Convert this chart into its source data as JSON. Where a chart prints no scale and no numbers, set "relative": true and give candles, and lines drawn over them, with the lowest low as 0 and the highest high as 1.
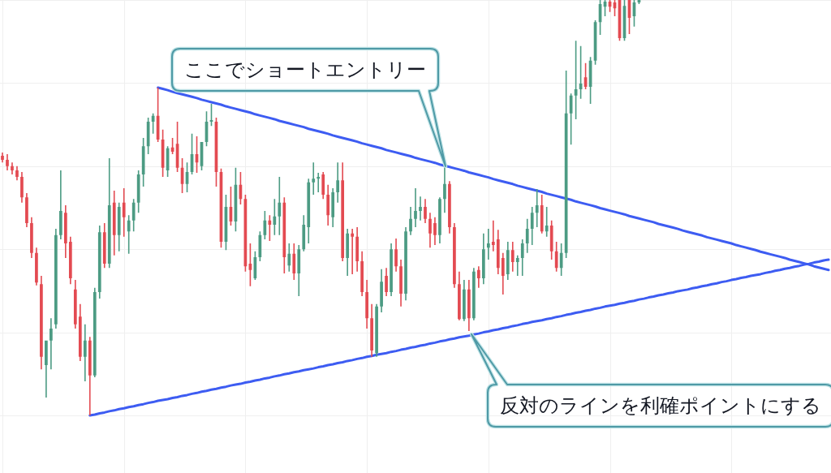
{
  "chart_data": {
    "type": "candlestick",
    "relative": true,
    "grid": true,
    "categories": [
      null,
      null,
      null,
      null,
      null,
      null,
      null,
      null,
      null,
      null,
      null,
      null,
      null,
      null,
      null,
      null,
      null,
      null,
      null,
      null,
      null,
      null,
      null,
      null,
      null,
      null,
      null,
      null,
      null,
      null,
      null,
      null,
      null,
      null,
      null,
      null,
      null,
      null,
      null,
      null,
      null,
      null,
      null,
      null,
      null,
      null,
      null,
      null,
      null,
      null,
      null,
      null,
      null,
      null,
      null,
      null,
      null,
      null,
      null,
      null,
      null,
      null,
      null,
      null,
      null,
      null,
      null,
      null,
      null,
      null,
      null,
      null,
      null,
      null,
      null,
      null,
      null,
      null,
      null,
      null,
      null,
      null,
      null,
      null,
      null,
      null,
      null,
      null,
      null,
      null,
      null,
      null,
      null,
      null,
      null,
      null,
      null,
      null,
      null,
      null,
      null,
      null,
      null,
      null,
      null,
      null,
      null,
      null,
      null,
      null,
      null,
      null,
      null,
      null,
      null,
      null,
      null,
      null,
      null,
      null,
      null,
      null,
      null,
      null,
      null,
      null,
      null,
      null,
      null,
      null,
      null,
      null,
      null,
      null,
      null,
      null,
      null,
      null,
      null,
      null,
      null,
      null,
      null,
      null,
      null,
      null,
      null,
      null,
      null,
      null,
      null,
      null,
      null,
      null,
      null,
      null,
      null,
      null,
      null,
      null,
      null,
      null,
      null,
      null,
      null,
      null,
      null,
      null,
      null,
      null,
      null
    ],
    "ohlc": [
      [
        0.625,
        0.633,
        0.609,
        0.615
      ],
      [
        0.615,
        0.629,
        0.59,
        0.6
      ],
      [
        0.6,
        0.609,
        0.58,
        0.59
      ],
      [
        0.59,
        0.6,
        0.566,
        0.574
      ],
      [
        0.574,
        0.586,
        0.512,
        0.525
      ],
      [
        0.525,
        0.535,
        0.453,
        0.463
      ],
      [
        0.463,
        0.477,
        0.379,
        0.391
      ],
      [
        0.391,
        0.404,
        0.313,
        0.32
      ],
      [
        0.316,
        0.336,
        0.111,
        0.141
      ],
      [
        0.121,
        0.18,
        0.043,
        0.18
      ],
      [
        0.18,
        0.234,
        0.111,
        0.209
      ],
      [
        0.219,
        0.449,
        0.209,
        0.434
      ],
      [
        0.434,
        0.59,
        0.424,
        0.492
      ],
      [
        0.488,
        0.506,
        0.379,
        0.414
      ],
      [
        0.418,
        0.43,
        0.316,
        0.33
      ],
      [
        0.303,
        0.326,
        0.209,
        0.219
      ],
      [
        0.238,
        0.268,
        0.131,
        0.141
      ],
      [
        0.141,
        0.219,
        0.082,
        0.18
      ],
      [
        0.18,
        0.189,
        0,
        0.096
      ],
      [
        0.096,
        0.307,
        0.092,
        0.297
      ],
      [
        0.297,
        0.457,
        0.281,
        0.441
      ],
      [
        0.441,
        0.463,
        0.355,
        0.365
      ],
      [
        0.365,
        0.619,
        0.355,
        0.506
      ],
      [
        0.512,
        0.541,
        0.385,
        0.434
      ],
      [
        0.434,
        0.512,
        0.395,
        0.502
      ],
      [
        0.512,
        0.547,
        0.43,
        0.477
      ],
      [
        0.443,
        0.482,
        0.389,
        0.469
      ],
      [
        0.469,
        0.521,
        0.443,
        0.512
      ],
      [
        0.512,
        0.59,
        0.488,
        0.58
      ],
      [
        0.58,
        0.668,
        0.551,
        0.648
      ],
      [
        0.648,
        0.717,
        0.629,
        0.707
      ],
      [
        0.707,
        0.727,
        0.678,
        0.721
      ],
      [
        0.721,
        0.789,
        0.658,
        0.664
      ],
      [
        0.664,
        0.688,
        0.574,
        0.596
      ],
      [
        0.59,
        0.648,
        0.574,
        0.643
      ],
      [
        0.645,
        0.668,
        0.629,
        0.635
      ],
      [
        0.654,
        0.707,
        0.586,
        0.596
      ],
      [
        0.596,
        0.619,
        0.535,
        0.557
      ],
      [
        0.557,
        0.609,
        0.537,
        0.586
      ],
      [
        0.586,
        0.678,
        0.58,
        0.629
      ],
      [
        0.629,
        0.672,
        0.584,
        0.609
      ],
      [
        0.6,
        0.658,
        0.59,
        0.658
      ],
      [
        0.658,
        0.732,
        0.648,
        0.707
      ],
      [
        0.707,
        0.75,
        0.697,
        0.711
      ],
      [
        0.707,
        0.717,
        0.551,
        0.586
      ],
      [
        0.586,
        0.594,
        0.404,
        0.418
      ],
      [
        0.418,
        0.531,
        0.398,
        0.502
      ],
      [
        0.502,
        0.551,
        0.457,
        0.467
      ],
      [
        0.467,
        0.596,
        0.443,
        0.555
      ],
      [
        0.555,
        0.586,
        0.508,
        0.521
      ],
      [
        0.521,
        0.531,
        0.346,
        0.359
      ],
      [
        0.365,
        0.414,
        0.311,
        0.35
      ],
      [
        0.33,
        0.395,
        0.326,
        0.381
      ],
      [
        0.381,
        0.443,
        0.371,
        0.434
      ],
      [
        0.434,
        0.492,
        0.424,
        0.469
      ],
      [
        0.469,
        0.482,
        0.42,
        0.459
      ],
      [
        0.459,
        0.521,
        0.434,
        0.479
      ],
      [
        0.479,
        0.574,
        0.434,
        0.512
      ],
      [
        0.512,
        0.525,
        0.342,
        0.381
      ],
      [
        0.361,
        0.414,
        0.346,
        0.389
      ],
      [
        0.389,
        0.414,
        0.326,
        0.342
      ],
      [
        0.342,
        0.41,
        0.287,
        0.4
      ],
      [
        0.4,
        0.482,
        0.395,
        0.459
      ],
      [
        0.453,
        0.57,
        0.414,
        0.561
      ],
      [
        0.561,
        0.609,
        0.531,
        0.57
      ],
      [
        0.57,
        0.584,
        0.537,
        0.574
      ],
      [
        0.58,
        0.586,
        0.521,
        0.531
      ],
      [
        0.531,
        0.555,
        0.457,
        0.482
      ],
      [
        0.477,
        0.547,
        0.453,
        0.537
      ],
      [
        0.537,
        0.609,
        0.512,
        0.566
      ],
      [
        0.566,
        0.609,
        0.371,
        0.379
      ],
      [
        0.379,
        0.449,
        0.336,
        0.438
      ],
      [
        0.438,
        0.449,
        0.34,
        0.43
      ],
      [
        0.43,
        0.453,
        0.346,
        0.371
      ],
      [
        0.371,
        0.395,
        0.287,
        0.297
      ],
      [
        0.297,
        0.326,
        0.209,
        0.234
      ],
      [
        0.234,
        0.268,
        0.141,
        0.156
      ],
      [
        0.15,
        0.268,
        0.141,
        0.262
      ],
      [
        0.262,
        0.352,
        0.248,
        0.322
      ],
      [
        0.336,
        0.355,
        0.287,
        0.297
      ],
      [
        0.297,
        0.414,
        0.287,
        0.4
      ],
      [
        0.4,
        0.426,
        0.346,
        0.359
      ],
      [
        0.359,
        0.375,
        0.262,
        0.293
      ],
      [
        0.293,
        0.453,
        0.277,
        0.443
      ],
      [
        0.443,
        0.502,
        0.434,
        0.473
      ],
      [
        0.473,
        0.547,
        0.453,
        0.492
      ],
      [
        0.492,
        0.527,
        0.469,
        0.502
      ],
      [
        0.502,
        0.521,
        0.463,
        0.473
      ],
      [
        0.473,
        0.488,
        0.404,
        0.438
      ],
      [
        0.463,
        0.477,
        0.41,
        0.434
      ],
      [
        0.434,
        0.525,
        0.414,
        0.521
      ],
      [
        0.521,
        0.6,
        0.488,
        0.557
      ],
      [
        0.557,
        0.564,
        0.438,
        0.453
      ],
      [
        0.453,
        0.463,
        0.307,
        0.316
      ],
      [
        0.316,
        0.346,
        0.229,
        0.232
      ],
      [
        0.232,
        0.326,
        0.227,
        0.303
      ],
      [
        0.303,
        0.326,
        0.203,
        0.234
      ],
      [
        0.234,
        0.355,
        0.229,
        0.346
      ],
      [
        0.35,
        0.359,
        0.307,
        0.33
      ],
      [
        0.33,
        0.438,
        0.316,
        0.4
      ],
      [
        0.404,
        0.449,
        0.375,
        0.414
      ],
      [
        0.418,
        0.469,
        0.395,
        0.41
      ],
      [
        0.424,
        0.447,
        0.34,
        0.355
      ],
      [
        0.379,
        0.391,
        0.291,
        0.336
      ],
      [
        0.34,
        0.418,
        0.326,
        0.398
      ],
      [
        0.398,
        0.418,
        0.346,
        0.369
      ],
      [
        0.369,
        0.385,
        0.336,
        0.379
      ],
      [
        0.379,
        0.424,
        0.336,
        0.414
      ],
      [
        0.414,
        0.473,
        0.391,
        0.449
      ],
      [
        0.449,
        0.502,
        0.41,
        0.488
      ],
      [
        0.488,
        0.545,
        0.453,
        0.506
      ],
      [
        0.506,
        0.531,
        0.438,
        0.443
      ],
      [
        0.443,
        0.502,
        0.43,
        0.457
      ],
      [
        0.457,
        0.469,
        0.375,
        0.395
      ],
      [
        0.395,
        0.418,
        0.346,
        0.355
      ],
      [
        0.355,
        0.414,
        0.336,
        0.391
      ],
      [
        0.391,
        0.83,
        0.379,
        0.727
      ],
      [
        0.727,
        0.775,
        0.652,
        0.77
      ],
      [
        0.77,
        0.902,
        0.713,
        0.785
      ],
      [
        0.785,
        0.889,
        0.762,
        0.799
      ],
      [
        0.814,
        0.848,
        0.785,
        0.791
      ],
      [
        0.791,
        0.863,
        0.75,
        0.854
      ],
      [
        0.854,
        0.951,
        0.844,
        0.947
      ],
      [
        0.947,
        1,
        0.916,
        0.99
      ],
      [
        0.984,
        1,
        0.961,
        0.996
      ],
      [
        0.996,
        1,
        0.971,
        0.984
      ],
      [
        0.994,
        1,
        0.961,
        0.98
      ],
      [
        1,
        1,
        0.902,
        0.908
      ],
      [
        0.908,
        1,
        0.902,
        0.986
      ],
      [
        1,
        1,
        0.918,
        0.957
      ],
      [
        0.961,
        1,
        0.936,
        0.994
      ],
      [
        0.994,
        1,
        0.99,
        1
      ],
      null,
      null,
      null,
      null,
      null,
      null,
      null,
      null,
      null,
      null,
      null,
      null,
      null,
      null,
      null,
      null,
      null,
      null,
      null,
      null,
      null,
      null,
      null,
      null,
      null,
      null,
      null,
      null,
      null,
      null,
      null,
      null,
      null,
      null,
      null,
      null,
      null,
      null,
      null
    ],
    "colors": [
      "#e34a51",
      "#e34a51",
      "#e34a51",
      "#e34a51",
      "#e34a51",
      "#e34a51",
      "#e34a51",
      "#e34a51",
      "#e34a51",
      "#4c9b83",
      "#4c9b83",
      "#4c9b83",
      "#4c9b83",
      "#e34a51",
      "#e34a51",
      "#e34a51",
      "#e34a51",
      "#4c9b83",
      "#e34a51",
      "#4c9b83",
      "#4c9b83",
      "#e34a51",
      "#4c9b83",
      "#e34a51",
      "#4c9b83",
      "#e34a51",
      "#4c9b83",
      "#4c9b83",
      "#4c9b83",
      "#4c9b83",
      "#4c9b83",
      "#4c9b83",
      "#e34a51",
      "#e34a51",
      "#4c9b83",
      "#e34a51",
      "#e34a51",
      "#e34a51",
      "#4c9b83",
      "#4c9b83",
      "#e34a51",
      "#4c9b83",
      "#4c9b83",
      "#4c9b83",
      "#e34a51",
      "#e34a51",
      "#4c9b83",
      "#e34a51",
      "#4c9b83",
      "#e34a51",
      "#e34a51",
      "#e34a51",
      "#4c9b83",
      "#4c9b83",
      "#4c9b83",
      "#e34a51",
      "#4c9b83",
      "#4c9b83",
      "#e34a51",
      "#4c9b83",
      "#e34a51",
      "#4c9b83",
      "#4c9b83",
      "#4c9b83",
      "#4c9b83",
      "#4c9b83",
      "#e34a51",
      "#e34a51",
      "#4c9b83",
      "#4c9b83",
      "#e34a51",
      "#4c9b83",
      "#e34a51",
      "#e34a51",
      "#e34a51",
      "#e34a51",
      "#e34a51",
      "#4c9b83",
      "#4c9b83",
      "#e34a51",
      "#4c9b83",
      "#e34a51",
      "#e34a51",
      "#4c9b83",
      "#4c9b83",
      "#4c9b83",
      "#4c9b83",
      "#e34a51",
      "#e34a51",
      "#e34a51",
      "#4c9b83",
      "#4c9b83",
      "#e34a51",
      "#e34a51",
      "#e34a51",
      "#4c9b83",
      "#e34a51",
      "#4c9b83",
      "#e34a51",
      "#4c9b83",
      "#4c9b83",
      "#e34a51",
      "#e34a51",
      "#e34a51",
      "#4c9b83",
      "#e34a51",
      "#4c9b83",
      "#4c9b83",
      "#4c9b83",
      "#4c9b83",
      "#4c9b83",
      "#e34a51",
      "#4c9b83",
      "#e34a51",
      "#e34a51",
      "#4c9b83",
      "#4c9b83",
      "#4c9b83",
      "#4c9b83",
      "#4c9b83",
      "#e34a51",
      "#4c9b83",
      "#4c9b83",
      "#4c9b83",
      "#4c9b83",
      "#e34a51",
      "#e34a51",
      "#e34a51",
      "#4c9b83",
      "#e34a51",
      "#4c9b83",
      "#4c9b83",
      null,
      null,
      null,
      null,
      null,
      null,
      null,
      null,
      null,
      null,
      null,
      null,
      null,
      null,
      null,
      null,
      null,
      null,
      null,
      null,
      null,
      null,
      null,
      null,
      null,
      null,
      null,
      null,
      null,
      null,
      null,
      null,
      null,
      null,
      null,
      null,
      null,
      null,
      null
    ],
    "series": [
      {
        "type": "line",
        "color": "#3d5cf2",
        "values": [
          null,
          null,
          null,
          null,
          null,
          null,
          null,
          null,
          null,
          null,
          null,
          null,
          null,
          null,
          null,
          null,
          null,
          null,
          null,
          null,
          null,
          null,
          null,
          null,
          null,
          null,
          null,
          null,
          null,
          null,
          null,
          null,
          0.789,
          0.786,
          0.783,
          0.779,
          0.776,
          0.773,
          0.77,
          0.767,
          0.764,
          0.76,
          0.757,
          0.754,
          0.751,
          0.748,
          0.744,
          0.741,
          0.738,
          0.735,
          0.732,
          0.729,
          0.725,
          0.722,
          0.719,
          0.716,
          0.713,
          0.709,
          0.706,
          0.703,
          0.7,
          0.697,
          0.694,
          0.69,
          0.687,
          0.684,
          0.681,
          0.678,
          0.674,
          0.671,
          0.668,
          0.665,
          0.662,
          0.659,
          0.655,
          0.652,
          0.649,
          0.646,
          0.643,
          0.639,
          0.636,
          0.633,
          0.63,
          0.627,
          0.624,
          0.62,
          0.617,
          0.614,
          0.611,
          0.608,
          0.604,
          0.601,
          0.598,
          0.595,
          0.592,
          0.589,
          0.585,
          0.582,
          0.579,
          0.576,
          0.573,
          0.569,
          0.566,
          0.563,
          0.56,
          0.557,
          0.553,
          0.55,
          0.547,
          0.544,
          0.541,
          0.538,
          0.534,
          0.531,
          0.528,
          0.525,
          0.522,
          0.519,
          0.515,
          0.512,
          0.509,
          0.506,
          0.503,
          0.499,
          0.496,
          0.493,
          0.49,
          0.487,
          0.484,
          0.48,
          0.477,
          0.474,
          0.471,
          0.468,
          0.465,
          0.461,
          0.458,
          0.455,
          0.452,
          0.449,
          0.445,
          0.442,
          0.439,
          0.436,
          0.433,
          0.429,
          0.426,
          0.423,
          0.42,
          0.417,
          0.414,
          0.41,
          0.407,
          0.404,
          0.401,
          0.398,
          0.394,
          0.391,
          0.388,
          0.385,
          0.382,
          0.379,
          0.375,
          0.372,
          0.369,
          0.366,
          0.363,
          0.359,
          0.356,
          0.353,
          0.35
        ]
      },
      {
        "type": "line",
        "color": "#3d5cf2",
        "values": [
          null,
          null,
          null,
          null,
          null,
          null,
          null,
          null,
          null,
          null,
          null,
          null,
          null,
          null,
          null,
          null,
          null,
          null,
          0,
          0.002,
          0.005,
          0.007,
          0.01,
          0.012,
          0.015,
          0.017,
          0.02,
          0.022,
          0.025,
          0.027,
          0.03,
          0.032,
          0.035,
          0.037,
          0.039,
          0.042,
          0.044,
          0.047,
          0.049,
          0.052,
          0.054,
          0.057,
          0.059,
          0.062,
          0.064,
          0.067,
          0.069,
          0.072,
          0.074,
          0.076,
          0.079,
          0.081,
          0.084,
          0.086,
          0.089,
          0.091,
          0.094,
          0.096,
          0.099,
          0.101,
          0.104,
          0.106,
          0.109,
          0.111,
          0.113,
          0.116,
          0.118,
          0.121,
          0.123,
          0.126,
          0.128,
          0.131,
          0.133,
          0.136,
          0.138,
          0.141,
          0.143,
          0.146,
          0.148,
          0.15,
          0.153,
          0.155,
          0.158,
          0.16,
          0.163,
          0.165,
          0.168,
          0.17,
          0.173,
          0.175,
          0.178,
          0.18,
          0.183,
          0.185,
          0.188,
          0.19,
          0.192,
          0.195,
          0.197,
          0.2,
          0.202,
          0.205,
          0.207,
          0.21,
          0.212,
          0.215,
          0.217,
          0.22,
          0.222,
          0.225,
          0.227,
          0.229,
          0.232,
          0.234,
          0.237,
          0.239,
          0.242,
          0.244,
          0.247,
          0.249,
          0.252,
          0.254,
          0.257,
          0.259,
          0.262,
          0.264,
          0.266,
          0.269,
          0.271,
          0.274,
          0.276,
          0.279,
          0.281,
          0.284,
          0.286,
          0.289,
          0.291,
          0.294,
          0.296,
          0.299,
          0.301,
          0.303,
          0.306,
          0.308,
          0.311,
          0.313,
          0.316,
          0.318,
          0.321,
          0.323,
          0.326,
          0.328,
          0.331,
          0.333,
          0.336,
          0.338,
          0.34,
          0.343,
          0.345,
          0.348,
          0.35,
          0.353,
          0.355,
          0.358,
          0.36,
          0.363,
          0.365,
          0.368,
          0.37,
          0.373,
          0.375
        ]
      }
    ],
    "annotations": [
      "ここでショートエントリー",
      "反対のラインを利確ポイントにする"
    ]
  }
}
